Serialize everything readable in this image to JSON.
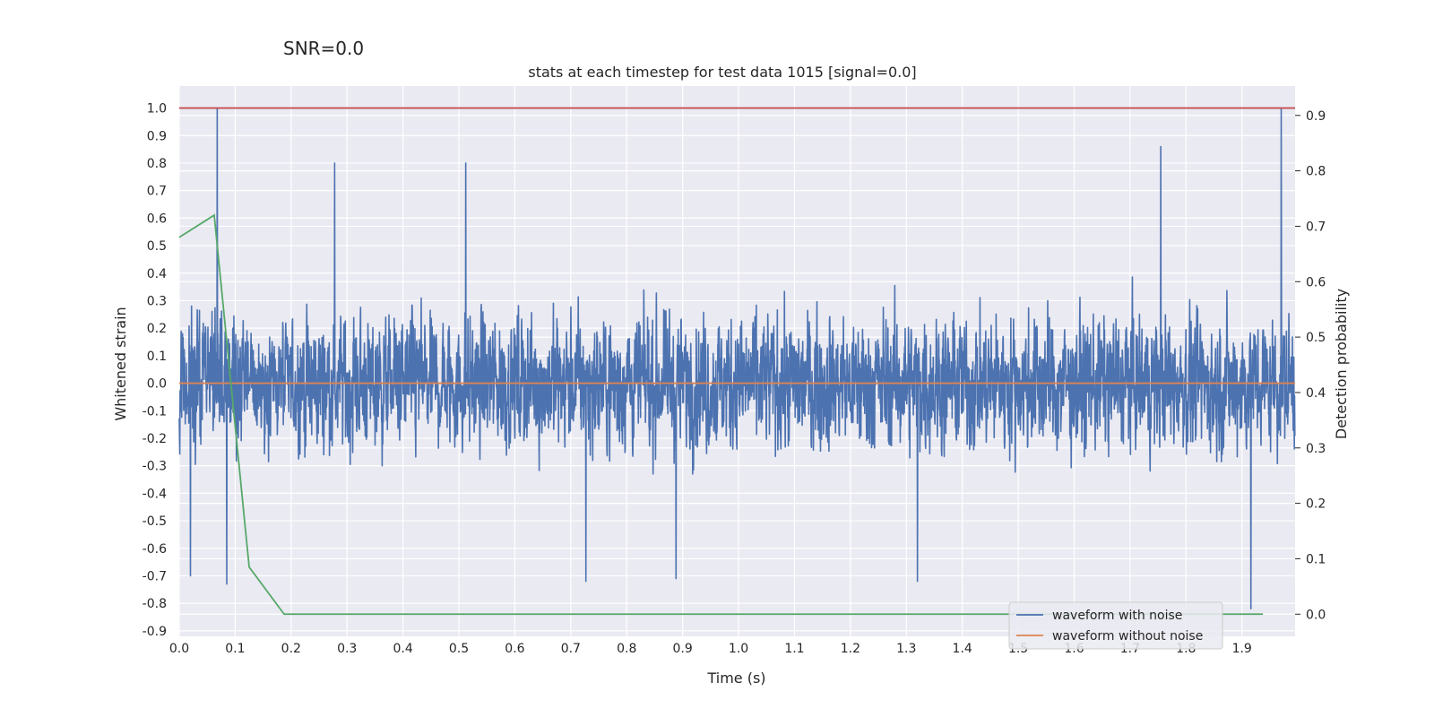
{
  "chart_data": {
    "type": "line",
    "suptitle": "SNR=0.0",
    "title": "stats at each timestep for test data 1015 [signal=0.0]",
    "xlabel": "Time (s)",
    "ylabel_left": "Whitened strain",
    "ylabel_right": "Detection probability",
    "xlim": [
      0.0,
      1.995
    ],
    "ylim_left": [
      -0.92,
      1.08
    ],
    "ylim_right": [
      -0.04,
      0.953
    ],
    "x_ticks": [
      "0.0",
      "0.1",
      "0.2",
      "0.3",
      "0.4",
      "0.5",
      "0.6",
      "0.7",
      "0.8",
      "0.9",
      "1.0",
      "1.1",
      "1.2",
      "1.3",
      "1.4",
      "1.5",
      "1.6",
      "1.7",
      "1.8",
      "1.9"
    ],
    "y_ticks_left": [
      "1.0",
      "0.9",
      "0.8",
      "0.7",
      "0.6",
      "0.5",
      "0.4",
      "0.3",
      "0.2",
      "0.1",
      "0.0",
      "-0.1",
      "-0.2",
      "-0.3",
      "-0.4",
      "-0.5",
      "-0.6",
      "-0.7",
      "-0.8",
      "-0.9"
    ],
    "y_ticks_right": [
      "0.9",
      "0.8",
      "0.7",
      "0.6",
      "0.5",
      "0.4",
      "0.3",
      "0.2",
      "0.1",
      "0.0"
    ],
    "grid": true,
    "legend_position": "lower-right",
    "series": [
      {
        "name": "waveform with noise",
        "axis": "left",
        "color": "#4c72b0",
        "samples_per_second": 2048,
        "duration": 2.0,
        "envelope_abs_max": 0.62,
        "peaks": [
          {
            "x": 0.068,
            "y": 1.0
          },
          {
            "x": 0.085,
            "y": -0.73
          },
          {
            "x": 0.02,
            "y": -0.7
          },
          {
            "x": 0.278,
            "y": 0.8
          },
          {
            "x": 0.512,
            "y": 0.8
          },
          {
            "x": 0.727,
            "y": -0.72
          },
          {
            "x": 0.888,
            "y": -0.71
          },
          {
            "x": 1.32,
            "y": -0.72
          },
          {
            "x": 1.755,
            "y": 0.86
          },
          {
            "x": 1.916,
            "y": -0.82
          },
          {
            "x": 1.97,
            "y": 1.0
          }
        ]
      },
      {
        "name": "waveform without noise",
        "axis": "left",
        "color": "#dd8452",
        "x": [
          0.0,
          1.995
        ],
        "y": [
          0.0,
          0.0
        ]
      },
      {
        "name": "",
        "axis": "right",
        "color": "#55a868",
        "x": [
          0.0,
          0.0625,
          0.125,
          0.1875,
          1.9375
        ],
        "y": [
          0.68,
          0.72,
          0.085,
          0.0,
          0.0
        ]
      },
      {
        "name": "",
        "axis": "left",
        "color": "#c44e52",
        "x": [
          0.0,
          1.995
        ],
        "y": [
          1.0,
          1.0
        ]
      }
    ]
  }
}
